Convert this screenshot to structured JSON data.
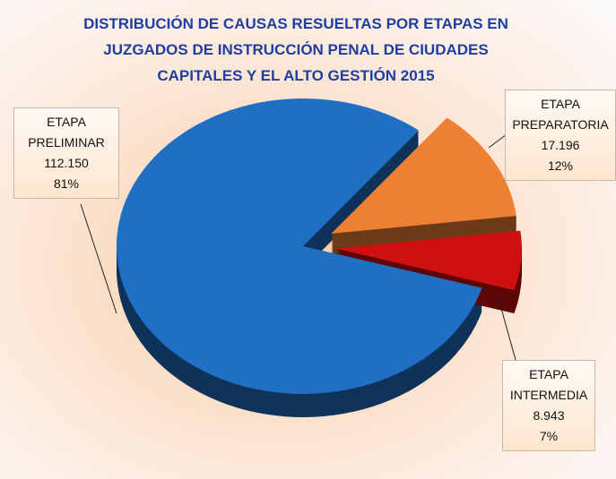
{
  "chart_data": {
    "type": "pie",
    "title": "DISTRIBUCIÓN DE CAUSAS RESUELTAS POR ETAPAS EN JUZGADOS DE INSTRUCCIÓN PENAL DE CIUDADES CAPITALES Y EL ALTO GESTIÓN 2015",
    "categories": [
      "ETAPA PRELIMINAR",
      "ETAPA PREPARATORIA",
      "ETAPA INTERMEDIA"
    ],
    "values": [
      112150,
      17196,
      8943
    ],
    "value_labels": [
      "112.150",
      "17.196",
      "8.943"
    ],
    "percentages": [
      81,
      12,
      7
    ],
    "percentage_labels": [
      "81%",
      "12%",
      "7%"
    ],
    "colors": [
      "#1f6fc5",
      "#ee8033",
      "#d01010"
    ]
  }
}
